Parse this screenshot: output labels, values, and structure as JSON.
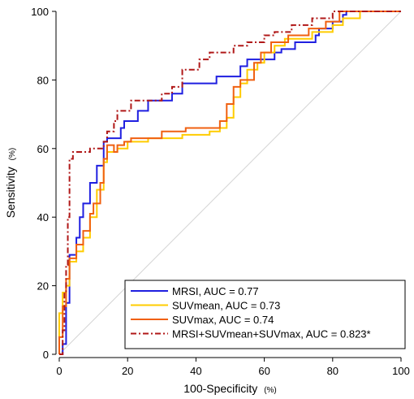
{
  "chart_data": {
    "type": "line",
    "xlabel": "100-Specificity",
    "xlabel_unit": "(%)",
    "ylabel": "Sensitivity",
    "ylabel_unit": "(%)",
    "xlim": [
      0,
      100
    ],
    "ylim": [
      0,
      100
    ],
    "x_ticks": [
      0,
      20,
      40,
      60,
      80,
      100
    ],
    "y_ticks": [
      0,
      20,
      40,
      60,
      80,
      100
    ],
    "grid": false,
    "reference_line": "diagonal",
    "legend_position": "bottom-right",
    "series": [
      {
        "name": "MRSI, AUC = 0.77",
        "color": "#1f1fe0",
        "dash": "solid",
        "points": [
          [
            0,
            0
          ],
          [
            1,
            0
          ],
          [
            1,
            3
          ],
          [
            2,
            3
          ],
          [
            2,
            15
          ],
          [
            3,
            15
          ],
          [
            3,
            29
          ],
          [
            5,
            29
          ],
          [
            5,
            34
          ],
          [
            6,
            34
          ],
          [
            6,
            40
          ],
          [
            7,
            40
          ],
          [
            7,
            44
          ],
          [
            9,
            44
          ],
          [
            9,
            50
          ],
          [
            11,
            50
          ],
          [
            11,
            55
          ],
          [
            13,
            55
          ],
          [
            13,
            62
          ],
          [
            14,
            62
          ],
          [
            14,
            63
          ],
          [
            18,
            63
          ],
          [
            18,
            66
          ],
          [
            19,
            66
          ],
          [
            19,
            68
          ],
          [
            23,
            68
          ],
          [
            23,
            71
          ],
          [
            26,
            71
          ],
          [
            26,
            74
          ],
          [
            33,
            74
          ],
          [
            33,
            76
          ],
          [
            36,
            76
          ],
          [
            36,
            79
          ],
          [
            46,
            79
          ],
          [
            46,
            81
          ],
          [
            53,
            81
          ],
          [
            53,
            84
          ],
          [
            55,
            84
          ],
          [
            55,
            86
          ],
          [
            63,
            86
          ],
          [
            63,
            88
          ],
          [
            65,
            88
          ],
          [
            65,
            89
          ],
          [
            69,
            89
          ],
          [
            69,
            91
          ],
          [
            75,
            91
          ],
          [
            75,
            93
          ],
          [
            76,
            93
          ],
          [
            76,
            95
          ],
          [
            80,
            95
          ],
          [
            80,
            97
          ],
          [
            83,
            97
          ],
          [
            83,
            99
          ],
          [
            84,
            99
          ],
          [
            84,
            100
          ],
          [
            100,
            100
          ]
        ]
      },
      {
        "name": "SUVmean, AUC = 0.73",
        "color": "#ffcc00",
        "dash": "solid",
        "points": [
          [
            0,
            0
          ],
          [
            0,
            12
          ],
          [
            1,
            12
          ],
          [
            1,
            18
          ],
          [
            2,
            18
          ],
          [
            2,
            20
          ],
          [
            3,
            20
          ],
          [
            3,
            27
          ],
          [
            5,
            27
          ],
          [
            5,
            30
          ],
          [
            7,
            30
          ],
          [
            7,
            34
          ],
          [
            9,
            34
          ],
          [
            9,
            40
          ],
          [
            11,
            40
          ],
          [
            11,
            48
          ],
          [
            13,
            48
          ],
          [
            13,
            56
          ],
          [
            14,
            56
          ],
          [
            14,
            59
          ],
          [
            17,
            59
          ],
          [
            17,
            60
          ],
          [
            20,
            60
          ],
          [
            20,
            62
          ],
          [
            26,
            62
          ],
          [
            26,
            63
          ],
          [
            36,
            63
          ],
          [
            36,
            64
          ],
          [
            44,
            64
          ],
          [
            44,
            65
          ],
          [
            47,
            65
          ],
          [
            47,
            66
          ],
          [
            49,
            66
          ],
          [
            49,
            69
          ],
          [
            51,
            69
          ],
          [
            51,
            75
          ],
          [
            53,
            75
          ],
          [
            53,
            79
          ],
          [
            55,
            79
          ],
          [
            55,
            83
          ],
          [
            58,
            83
          ],
          [
            58,
            85
          ],
          [
            60,
            85
          ],
          [
            60,
            88
          ],
          [
            63,
            88
          ],
          [
            63,
            90
          ],
          [
            66,
            90
          ],
          [
            66,
            92
          ],
          [
            74,
            92
          ],
          [
            74,
            94
          ],
          [
            80,
            94
          ],
          [
            80,
            96
          ],
          [
            83,
            96
          ],
          [
            83,
            98
          ],
          [
            88,
            98
          ],
          [
            88,
            100
          ],
          [
            100,
            100
          ]
        ]
      },
      {
        "name": "SUVmax, AUC = 0.74",
        "color": "#f06010",
        "dash": "solid",
        "points": [
          [
            0,
            0
          ],
          [
            0,
            5
          ],
          [
            1,
            5
          ],
          [
            1,
            14
          ],
          [
            2,
            14
          ],
          [
            2,
            22
          ],
          [
            3,
            22
          ],
          [
            3,
            28
          ],
          [
            5,
            28
          ],
          [
            5,
            32
          ],
          [
            7,
            32
          ],
          [
            7,
            36
          ],
          [
            9,
            36
          ],
          [
            9,
            41
          ],
          [
            10,
            41
          ],
          [
            10,
            44
          ],
          [
            12,
            44
          ],
          [
            12,
            50
          ],
          [
            13,
            50
          ],
          [
            13,
            57
          ],
          [
            14,
            57
          ],
          [
            14,
            61
          ],
          [
            16,
            61
          ],
          [
            16,
            59
          ],
          [
            17,
            59
          ],
          [
            17,
            61
          ],
          [
            19,
            61
          ],
          [
            19,
            62
          ],
          [
            21,
            62
          ],
          [
            21,
            63
          ],
          [
            30,
            63
          ],
          [
            30,
            65
          ],
          [
            37,
            65
          ],
          [
            37,
            66
          ],
          [
            43,
            66
          ],
          [
            43,
            66
          ],
          [
            47,
            66
          ],
          [
            47,
            68
          ],
          [
            49,
            68
          ],
          [
            49,
            73
          ],
          [
            51,
            73
          ],
          [
            51,
            78
          ],
          [
            53,
            78
          ],
          [
            53,
            80
          ],
          [
            57,
            80
          ],
          [
            57,
            85
          ],
          [
            59,
            85
          ],
          [
            59,
            88
          ],
          [
            62,
            88
          ],
          [
            62,
            91
          ],
          [
            67,
            91
          ],
          [
            67,
            93
          ],
          [
            73,
            93
          ],
          [
            73,
            95
          ],
          [
            78,
            95
          ],
          [
            78,
            97
          ],
          [
            82,
            97
          ],
          [
            82,
            100
          ],
          [
            100,
            100
          ]
        ]
      },
      {
        "name": "MRSI+SUVmean+SUVmax, AUC = 0.823*",
        "color": "#b01818",
        "dash": "dashdot",
        "points": [
          [
            0,
            0
          ],
          [
            1,
            0
          ],
          [
            1,
            7
          ],
          [
            1.5,
            7
          ],
          [
            1.5,
            18
          ],
          [
            2,
            18
          ],
          [
            2,
            26
          ],
          [
            2.5,
            26
          ],
          [
            2.5,
            40
          ],
          [
            3,
            40
          ],
          [
            3,
            57
          ],
          [
            4,
            57
          ],
          [
            4,
            59
          ],
          [
            9,
            59
          ],
          [
            9,
            60
          ],
          [
            13,
            60
          ],
          [
            13,
            62
          ],
          [
            14,
            62
          ],
          [
            14,
            65
          ],
          [
            16,
            65
          ],
          [
            16,
            68
          ],
          [
            17,
            68
          ],
          [
            17,
            71
          ],
          [
            21,
            71
          ],
          [
            21,
            74
          ],
          [
            30,
            74
          ],
          [
            30,
            76
          ],
          [
            33,
            76
          ],
          [
            33,
            78
          ],
          [
            36,
            78
          ],
          [
            36,
            83
          ],
          [
            41,
            83
          ],
          [
            41,
            86
          ],
          [
            44,
            86
          ],
          [
            44,
            88
          ],
          [
            51,
            88
          ],
          [
            51,
            90
          ],
          [
            55,
            90
          ],
          [
            55,
            91
          ],
          [
            60,
            91
          ],
          [
            60,
            93
          ],
          [
            63,
            93
          ],
          [
            63,
            94
          ],
          [
            68,
            94
          ],
          [
            68,
            96
          ],
          [
            74,
            96
          ],
          [
            74,
            98
          ],
          [
            80,
            98
          ],
          [
            80,
            100
          ],
          [
            100,
            100
          ]
        ]
      }
    ]
  }
}
